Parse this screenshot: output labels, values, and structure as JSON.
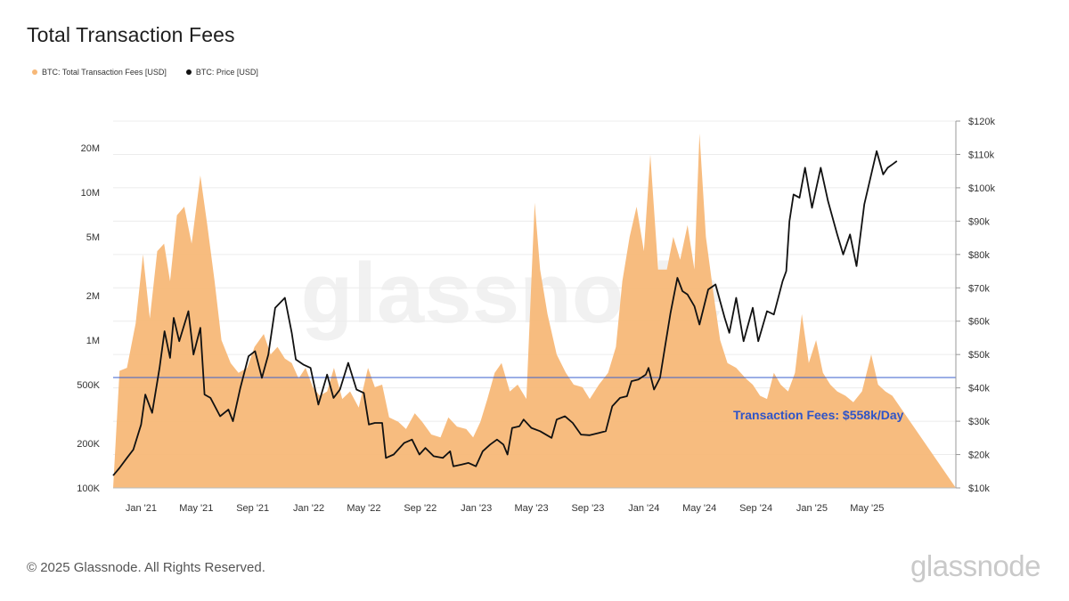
{
  "title": "Total Transaction Fees",
  "legend": [
    {
      "label": "BTC: Total Transaction Fees [USD]",
      "color": "#f7b878"
    },
    {
      "label": "BTC: Price [USD]",
      "color": "#111111"
    }
  ],
  "footer": {
    "copyright": "© 2025 Glassnode. All Rights Reserved.",
    "logo": "glassnode"
  },
  "watermark": "glassnode",
  "chart_data": {
    "type": "area",
    "x_ticks": [
      "Jan '21",
      "May '21",
      "Sep '21",
      "Jan '22",
      "May '22",
      "Sep '22",
      "Jan '23",
      "May '23",
      "Sep '23",
      "Jan '24",
      "May '24",
      "Sep '24",
      "Jan '25",
      "May '25"
    ],
    "y_left_ticks": [
      "20M",
      "10M",
      "5M",
      "2M",
      "1M",
      "500K",
      "200K",
      "100K"
    ],
    "y_left_scale": "log",
    "y_left_range": [
      100000,
      30000000
    ],
    "y_right_ticks": [
      "$120k",
      "$110k",
      "$100k",
      "$90k",
      "$80k",
      "$70k",
      "$60k",
      "$50k",
      "$40k",
      "$30k",
      "$20k",
      "$10k"
    ],
    "y_right_scale": "linear",
    "y_right_range": [
      10000,
      120000
    ],
    "series": [
      {
        "name": "BTC: Total Transaction Fees [USD]",
        "axis": "left",
        "color": "#f7b878",
        "x": [
          "2020-11-15",
          "2020-12-01",
          "2020-12-20",
          "2021-01-05",
          "2021-01-20",
          "2021-02-05",
          "2021-02-20",
          "2021-03-05",
          "2021-03-20",
          "2021-04-05",
          "2021-04-21",
          "2021-05-10",
          "2021-05-25",
          "2021-06-10",
          "2021-06-25",
          "2021-07-15",
          "2021-08-01",
          "2021-08-20",
          "2021-09-05",
          "2021-09-25",
          "2021-10-10",
          "2021-10-25",
          "2021-11-10",
          "2021-11-25",
          "2021-12-10",
          "2021-12-25",
          "2022-01-10",
          "2022-01-25",
          "2022-02-10",
          "2022-02-25",
          "2022-03-15",
          "2022-04-01",
          "2022-04-20",
          "2022-05-10",
          "2022-05-25",
          "2022-06-10",
          "2022-06-25",
          "2022-07-15",
          "2022-08-01",
          "2022-08-20",
          "2022-09-05",
          "2022-09-25",
          "2022-10-15",
          "2022-11-01",
          "2022-11-20",
          "2022-12-10",
          "2022-12-25",
          "2023-01-10",
          "2023-01-25",
          "2023-02-10",
          "2023-02-25",
          "2023-03-15",
          "2023-04-01",
          "2023-04-20",
          "2023-05-08",
          "2023-05-20",
          "2023-06-05",
          "2023-06-25",
          "2023-07-15",
          "2023-08-01",
          "2023-08-20",
          "2023-09-05",
          "2023-09-25",
          "2023-10-15",
          "2023-11-01",
          "2023-11-15",
          "2023-12-01",
          "2023-12-16",
          "2024-01-01",
          "2024-01-15",
          "2024-02-01",
          "2024-02-20",
          "2024-03-05",
          "2024-03-20",
          "2024-04-05",
          "2024-04-20",
          "2024-05-01",
          "2024-05-15",
          "2024-06-01",
          "2024-06-15",
          "2024-07-01",
          "2024-07-20",
          "2024-08-10",
          "2024-08-25",
          "2024-09-10",
          "2024-09-25",
          "2024-10-10",
          "2024-10-25",
          "2024-11-10",
          "2024-11-25",
          "2024-12-10",
          "2024-12-25",
          "2025-01-10",
          "2025-01-25",
          "2025-02-10",
          "2025-02-25",
          "2025-03-15",
          "2025-04-01",
          "2025-04-20",
          "2025-05-10",
          "2025-05-25",
          "2025-06-10",
          "2025-06-25"
        ],
        "values": [
          620000,
          650000,
          1300000,
          3800000,
          1400000,
          4000000,
          4500000,
          2500000,
          7000000,
          8000000,
          4500000,
          13000000,
          6000000,
          2500000,
          1000000,
          700000,
          600000,
          650000,
          900000,
          1100000,
          800000,
          900000,
          750000,
          700000,
          550000,
          650000,
          480000,
          420000,
          450000,
          650000,
          400000,
          450000,
          350000,
          650000,
          480000,
          500000,
          300000,
          280000,
          250000,
          320000,
          280000,
          230000,
          220000,
          300000,
          260000,
          250000,
          220000,
          280000,
          400000,
          600000,
          700000,
          450000,
          500000,
          400000,
          8500000,
          3000000,
          1500000,
          800000,
          600000,
          500000,
          480000,
          400000,
          500000,
          600000,
          900000,
          2500000,
          5000000,
          8000000,
          4000000,
          18000000,
          3000000,
          3000000,
          5000000,
          3500000,
          6000000,
          3000000,
          25000000,
          5000000,
          2000000,
          1000000,
          700000,
          650000,
          550000,
          500000,
          420000,
          400000,
          600000,
          500000,
          450000,
          600000,
          1500000,
          700000,
          1000000,
          600000,
          500000,
          450000,
          420000,
          380000,
          450000,
          800000,
          500000,
          450000,
          420000
        ]
      },
      {
        "name": "BTC: Price [USD]",
        "axis": "right",
        "color": "#111111",
        "x": [
          "2020-11-01",
          "2020-11-15",
          "2020-12-01",
          "2020-12-15",
          "2021-01-01",
          "2021-01-10",
          "2021-01-25",
          "2021-02-10",
          "2021-02-21",
          "2021-03-05",
          "2021-03-13",
          "2021-03-25",
          "2021-04-14",
          "2021-04-25",
          "2021-05-10",
          "2021-05-19",
          "2021-06-01",
          "2021-06-22",
          "2021-07-10",
          "2021-07-20",
          "2021-08-05",
          "2021-08-23",
          "2021-09-06",
          "2021-09-21",
          "2021-10-05",
          "2021-10-20",
          "2021-11-10",
          "2021-11-25",
          "2021-12-04",
          "2021-12-20",
          "2022-01-05",
          "2022-01-22",
          "2022-02-10",
          "2022-02-24",
          "2022-03-10",
          "2022-03-28",
          "2022-04-15",
          "2022-05-01",
          "2022-05-12",
          "2022-05-25",
          "2022-06-10",
          "2022-06-18",
          "2022-07-05",
          "2022-07-28",
          "2022-08-14",
          "2022-08-30",
          "2022-09-12",
          "2022-09-30",
          "2022-10-20",
          "2022-11-05",
          "2022-11-12",
          "2022-11-30",
          "2022-12-15",
          "2022-12-31",
          "2023-01-15",
          "2023-01-31",
          "2023-02-15",
          "2023-03-01",
          "2023-03-10",
          "2023-03-20",
          "2023-04-05",
          "2023-04-14",
          "2023-05-01",
          "2023-05-20",
          "2023-06-14",
          "2023-06-25",
          "2023-07-13",
          "2023-07-30",
          "2023-08-17",
          "2023-09-05",
          "2023-09-25",
          "2023-10-10",
          "2023-10-24",
          "2023-11-10",
          "2023-11-25",
          "2023-12-05",
          "2023-12-20",
          "2024-01-05",
          "2024-01-11",
          "2024-01-23",
          "2024-02-05",
          "2024-02-15",
          "2024-02-28",
          "2024-03-14",
          "2024-03-25",
          "2024-04-05",
          "2024-04-20",
          "2024-05-01",
          "2024-05-20",
          "2024-06-05",
          "2024-06-25",
          "2024-07-05",
          "2024-07-20",
          "2024-08-05",
          "2024-08-25",
          "2024-09-06",
          "2024-09-25",
          "2024-10-10",
          "2024-10-29",
          "2024-11-06",
          "2024-11-13",
          "2024-11-22",
          "2024-12-05",
          "2024-12-17",
          "2025-01-01",
          "2025-01-20",
          "2025-02-05",
          "2025-02-25",
          "2025-03-10",
          "2025-03-25",
          "2025-04-08",
          "2025-04-25",
          "2025-05-10",
          "2025-05-22",
          "2025-06-05",
          "2025-06-15",
          "2025-06-25",
          "2025-07-05"
        ],
        "values": [
          13700,
          16000,
          19000,
          21500,
          29000,
          38000,
          32500,
          46000,
          57000,
          49000,
          61000,
          54000,
          63000,
          50000,
          58000,
          38000,
          37000,
          31500,
          33500,
          30000,
          40000,
          49500,
          51000,
          43000,
          50000,
          64000,
          67000,
          56500,
          48500,
          47000,
          46000,
          35000,
          44000,
          37000,
          39500,
          47500,
          39500,
          38500,
          29000,
          29500,
          29500,
          19000,
          20000,
          23500,
          24500,
          20000,
          22000,
          19500,
          19000,
          21000,
          16500,
          17000,
          17500,
          16500,
          21000,
          23000,
          24500,
          23000,
          20000,
          28000,
          28500,
          30500,
          28000,
          27000,
          25000,
          30500,
          31500,
          29500,
          26000,
          25800,
          26500,
          27000,
          34500,
          37000,
          37500,
          42000,
          42500,
          44000,
          46000,
          39500,
          43000,
          51500,
          62500,
          73000,
          69000,
          68000,
          64500,
          59000,
          69500,
          71000,
          61000,
          56500,
          67000,
          54000,
          64000,
          54000,
          63000,
          62000,
          72000,
          75000,
          90000,
          98000,
          97000,
          106000,
          94000,
          106000,
          96000,
          86000,
          80000,
          86000,
          76500,
          95000,
          104000,
          111000,
          104000,
          106000,
          107000,
          108000
        ]
      }
    ],
    "reference_line": {
      "axis": "left",
      "value": 558000,
      "color": "#3a5fcd"
    },
    "annotation": "Transaction Fees: $558k/Day",
    "grid": "horizontal"
  }
}
